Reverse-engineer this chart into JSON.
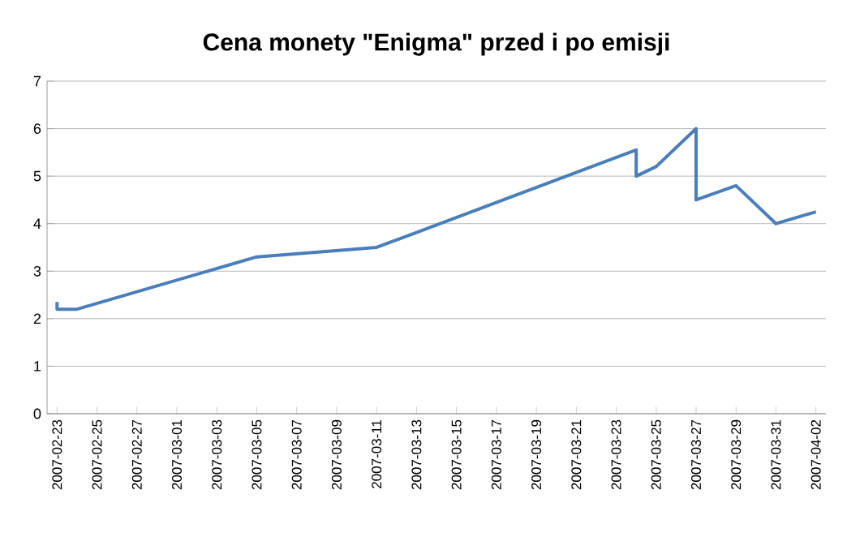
{
  "chart_data": {
    "type": "line",
    "title": "Cena monety \"Enigma\" przed i po emisji",
    "x": [
      "2007-02-23",
      "2007-02-23",
      "2007-02-24",
      "2007-03-05",
      "2007-03-11",
      "2007-03-24",
      "2007-03-24",
      "2007-03-25",
      "2007-03-27",
      "2007-03-27",
      "2007-03-29",
      "2007-03-31",
      "2007-04-02"
    ],
    "values": [
      2.35,
      2.2,
      2.2,
      3.3,
      3.5,
      5.55,
      5.0,
      5.2,
      6.0,
      4.5,
      4.8,
      4.0,
      4.25
    ],
    "color": "#4a7ebb",
    "xlim": [
      "2007-02-22T12:00",
      "2007-04-02T12:00"
    ],
    "xticks": [
      "2007-02-23",
      "2007-02-25",
      "2007-02-27",
      "2007-03-01",
      "2007-03-03",
      "2007-03-05",
      "2007-03-07",
      "2007-03-09",
      "2007-03-11",
      "2007-03-13",
      "2007-03-15",
      "2007-03-17",
      "2007-03-19",
      "2007-03-21",
      "2007-03-23",
      "2007-03-25",
      "2007-03-27",
      "2007-03-29",
      "2007-03-31",
      "2007-04-02"
    ],
    "ylim": [
      0,
      7
    ],
    "yticks": [
      0,
      1,
      2,
      3,
      4,
      5,
      6,
      7
    ],
    "grid": "y",
    "marker": "none",
    "line_style": "solid"
  }
}
